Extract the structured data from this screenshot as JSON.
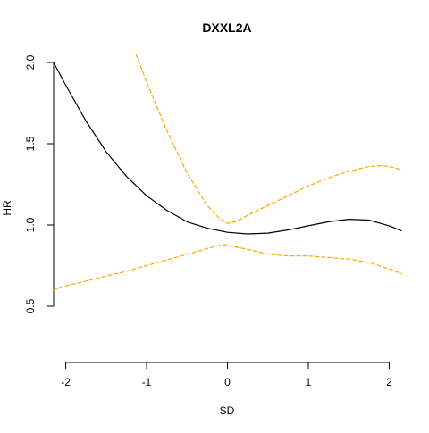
{
  "chart_data": {
    "type": "line",
    "title": "DXXL2A",
    "xlabel": "SD",
    "ylabel": "HR",
    "xlim": [
      -2.15,
      2.15
    ],
    "ylim": [
      0.5,
      2.0
    ],
    "x_ticks": [
      -2,
      -1,
      0,
      1,
      2
    ],
    "x_tick_labels": [
      "-2",
      "-1",
      "0",
      "1",
      "2"
    ],
    "y_ticks": [
      0.5,
      1.0,
      1.5,
      2.0
    ],
    "y_tick_labels": [
      "0.5",
      "1.0",
      "1.5",
      "2.0"
    ],
    "grid": false,
    "legend": "none",
    "series": [
      {
        "role": "estimate",
        "color": "#000000",
        "style": "solid",
        "x": [
          -2.15,
          -2.0,
          -1.75,
          -1.5,
          -1.25,
          -1.0,
          -0.75,
          -0.5,
          -0.25,
          0.0,
          0.25,
          0.5,
          0.75,
          1.0,
          1.25,
          1.5,
          1.75,
          2.0,
          2.15
        ],
        "y": [
          2.0,
          1.86,
          1.64,
          1.45,
          1.3,
          1.18,
          1.09,
          1.02,
          0.98,
          0.955,
          0.945,
          0.95,
          0.97,
          0.995,
          1.02,
          1.035,
          1.03,
          0.995,
          0.965
        ]
      },
      {
        "role": "upper-ci",
        "color": "#FFA500",
        "style": "dashed",
        "x": [
          -1.13,
          -1.0,
          -0.75,
          -0.5,
          -0.25,
          -0.1,
          0.0,
          0.1,
          0.25,
          0.5,
          0.75,
          1.0,
          1.25,
          1.5,
          1.75,
          1.9,
          2.0,
          2.15
        ],
        "y": [
          2.05,
          1.88,
          1.58,
          1.32,
          1.12,
          1.04,
          1.01,
          1.02,
          1.06,
          1.12,
          1.18,
          1.24,
          1.29,
          1.33,
          1.36,
          1.365,
          1.36,
          1.34
        ]
      },
      {
        "role": "lower-ci",
        "color": "#FFA500",
        "style": "dashed",
        "x": [
          -2.15,
          -2.0,
          -1.75,
          -1.5,
          -1.25,
          -1.0,
          -0.75,
          -0.5,
          -0.25,
          -0.05,
          0.0,
          0.25,
          0.5,
          0.75,
          1.0,
          1.25,
          1.5,
          1.75,
          2.0,
          2.15
        ],
        "y": [
          0.6,
          0.625,
          0.655,
          0.685,
          0.715,
          0.75,
          0.785,
          0.82,
          0.855,
          0.88,
          0.875,
          0.85,
          0.82,
          0.81,
          0.81,
          0.8,
          0.79,
          0.77,
          0.73,
          0.7
        ]
      }
    ]
  }
}
